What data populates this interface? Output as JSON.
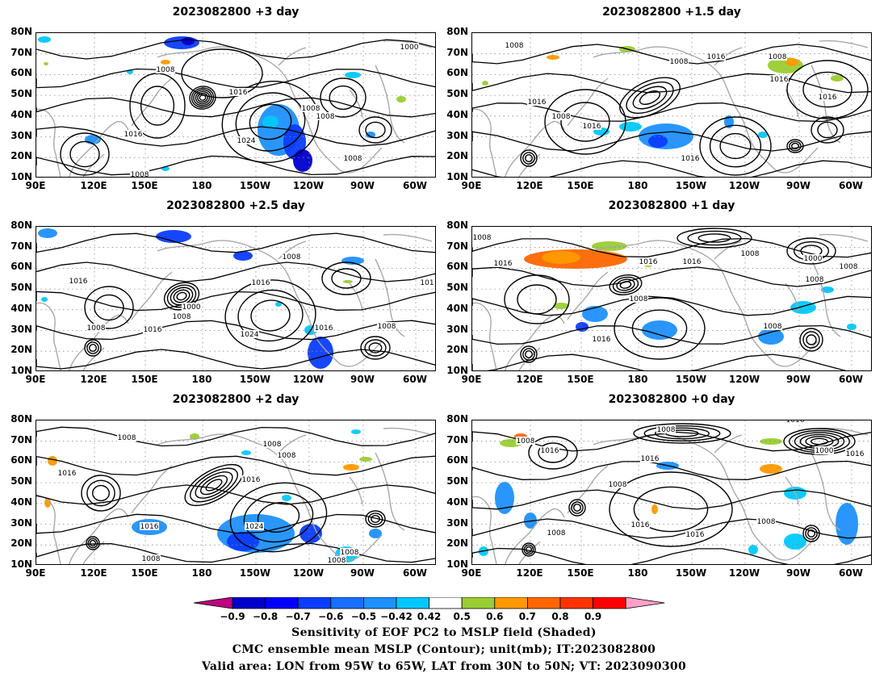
{
  "panels": [
    {
      "title": "2023082800  +3 day"
    },
    {
      "title": "2023082800  +1.5  day"
    },
    {
      "title": "2023082800  +2.5  day"
    },
    {
      "title": "2023082800  +1  day"
    },
    {
      "title": "2023082800  +2  day"
    },
    {
      "title": "2023082800  +0  day"
    }
  ],
  "axes": {
    "lat_ticks": [
      "80N",
      "70N",
      "60N",
      "50N",
      "40N",
      "30N",
      "20N",
      "10N"
    ],
    "lon_ticks": [
      "90E",
      "120E",
      "150E",
      "180",
      "150W",
      "120W",
      "90W",
      "60W"
    ]
  },
  "contour_labels": {
    "p0": [
      "1000",
      "1008",
      "1016",
      "1016",
      "1024",
      "1008",
      "1008",
      "1008",
      "1008"
    ],
    "p1": [
      "1008",
      "1008",
      "1016",
      "1008",
      "1016",
      "1008",
      "1016",
      "1016",
      "1016",
      "1016"
    ],
    "p2": [
      "1016",
      "1008",
      "1008",
      "1000",
      "1008",
      "1016",
      "1016",
      "1024",
      "1016",
      "1008",
      "101"
    ],
    "p3": [
      "1008",
      "1016",
      "1016",
      "1016",
      "1008",
      "1008",
      "1016",
      "1008",
      "1000",
      "1008",
      "1008"
    ],
    "p4": [
      "1008",
      "1008",
      "1016",
      "1008",
      "1016",
      "1016",
      "1024",
      "1008",
      "1008",
      "1008"
    ],
    "p5": [
      "1016",
      "1008",
      "1016",
      "1008",
      "1008",
      "1016",
      "1008",
      "1016",
      "1016",
      "1000",
      "1016",
      "1008"
    ]
  },
  "colorbar": {
    "labels": [
      "−0.9",
      "−0.8",
      "−0.7",
      "−0.6",
      "−0.5",
      "−0.42",
      "0.42",
      "0.5",
      "0.6",
      "0.7",
      "0.8",
      "0.9"
    ],
    "colors": [
      "#0000cc",
      "#0000ff",
      "#0a3cff",
      "#1a6eff",
      "#1e90ff",
      "#00c8ff",
      "#ffffff",
      "#9acd32",
      "#ff9900",
      "#ff6600",
      "#ff3300",
      "#ff0000"
    ],
    "low_end_color": "#c0007f",
    "high_end_color": "#ffa0c8"
  },
  "caption": {
    "line1": "Sensitivity of EOF PC2 to MSLP field (Shaded)",
    "line2": "CMC ensemble mean MSLP (Contour); unit(mb); IT:2023082800",
    "line3": "Valid area: LON from 95W to 65W, LAT from 30N to 50N; VT: 2023090300"
  }
}
